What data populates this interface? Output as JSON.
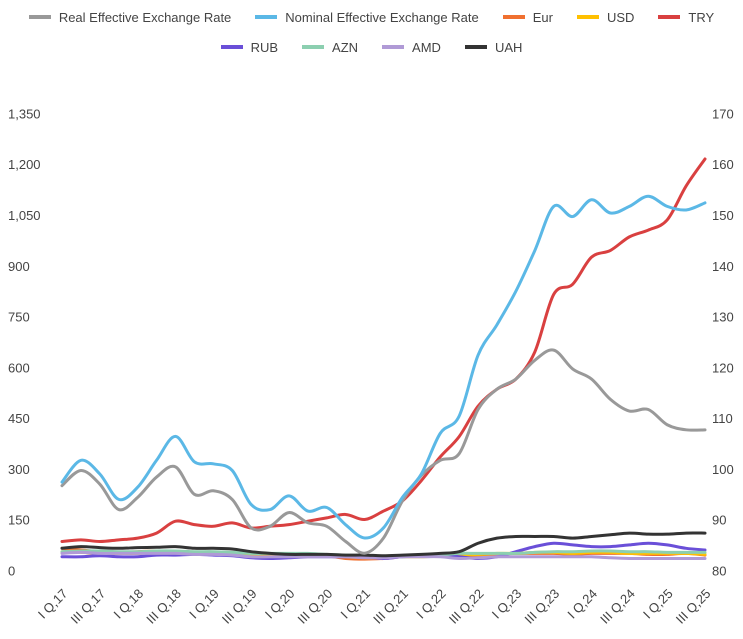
{
  "chart_data": {
    "type": "line",
    "categories": [
      "I Q,17",
      null,
      "III Q,17",
      null,
      "I Q,18",
      null,
      "III Q,18",
      null,
      "I Q,19",
      null,
      "III Q,19",
      null,
      "I Q,20",
      null,
      "III Q,20",
      null,
      "I Q,21",
      null,
      "III Q,21",
      null,
      "I Q,22",
      null,
      "III Q,22",
      null,
      "I Q,23",
      null,
      "III Q,23",
      null,
      "I Q,24",
      null,
      "III Q,24",
      null,
      "I Q,25",
      null,
      "III Q,25"
    ],
    "ylim": [
      0,
      1350
    ],
    "yticks": [
      0,
      150,
      300,
      450,
      600,
      750,
      900,
      {
        "value": 1050,
        "label": "1,050"
      },
      {
        "value": 1200,
        "label": "1,200"
      },
      {
        "value": 1350,
        "label": "1,350"
      }
    ],
    "y2lim": [
      80,
      170
    ],
    "y2ticks": [
      80,
      90,
      100,
      110,
      120,
      130,
      140,
      150,
      160,
      170
    ],
    "series": [
      {
        "name": "Real Effective Exchange Rate",
        "color": "#999999",
        "axis": "y2",
        "values": [
          97,
          100,
          97.3,
          92.3,
          94.7,
          98.7,
          100.7,
          95.3,
          96,
          94.3,
          88.7,
          89,
          91.7,
          89.7,
          89,
          86,
          83.7,
          86.7,
          94,
          99,
          102,
          103.3,
          112,
          116,
          118,
          121.7,
          123.7,
          120,
          118,
          114,
          111.7,
          112,
          109,
          108,
          108
        ]
      },
      {
        "name": "Nominal Effective Exchange Rate",
        "color": "#5bb8e6",
        "axis": "y2",
        "values": [
          97.7,
          102,
          99.3,
          94.3,
          96.7,
          102,
          106.7,
          101.7,
          101.3,
          100,
          93.3,
          92.3,
          95,
          92,
          92.7,
          89.3,
          86.7,
          88.7,
          94.7,
          99.3,
          107.3,
          110.7,
          122.7,
          128.7,
          135.3,
          143.3,
          152,
          150,
          153.3,
          150.7,
          152,
          154,
          152,
          151.3,
          152.7
        ]
      },
      {
        "name": "Eur",
        "color": "#f07030",
        "values": [
          70,
          65,
          60,
          58,
          60,
          62,
          60,
          58,
          58,
          55,
          50,
          50,
          52,
          52,
          48,
          40,
          38,
          40,
          45,
          48,
          50,
          48,
          50,
          52,
          55,
          55,
          55,
          52,
          55,
          55,
          55,
          52,
          52,
          55,
          50
        ]
      },
      {
        "name": "USD",
        "color": "#ffc000",
        "values": [
          60,
          58,
          55,
          55,
          55,
          58,
          58,
          55,
          55,
          52,
          48,
          48,
          50,
          50,
          48,
          45,
          42,
          42,
          45,
          45,
          48,
          50,
          52,
          55,
          55,
          58,
          58,
          55,
          58,
          58,
          55,
          55,
          55,
          55,
          52
        ]
      },
      {
        "name": "TRY",
        "color": "#d94040",
        "values": [
          90,
          95,
          90,
          95,
          100,
          115,
          150,
          140,
          135,
          145,
          130,
          135,
          140,
          150,
          160,
          170,
          155,
          180,
          210,
          270,
          340,
          400,
          490,
          540,
          570,
          650,
          820,
          850,
          930,
          950,
          990,
          1010,
          1040,
          1140,
          1220
        ]
      },
      {
        "name": "RUB",
        "color": "#6a4fd8",
        "values": [
          45,
          45,
          48,
          45,
          45,
          50,
          50,
          52,
          50,
          48,
          42,
          40,
          42,
          45,
          45,
          45,
          45,
          40,
          45,
          48,
          50,
          45,
          40,
          45,
          60,
          75,
          85,
          80,
          75,
          75,
          80,
          85,
          80,
          70,
          65
        ]
      },
      {
        "name": "AZN",
        "color": "#8ccfb0",
        "values": [
          60,
          62,
          62,
          60,
          60,
          62,
          62,
          60,
          60,
          58,
          55,
          55,
          55,
          55,
          52,
          50,
          48,
          45,
          45,
          48,
          50,
          55,
          55,
          55,
          55,
          58,
          60,
          60,
          62,
          62,
          60,
          60,
          58,
          58,
          58
        ]
      },
      {
        "name": "AMD",
        "color": "#b09ad6",
        "values": [
          55,
          58,
          55,
          55,
          55,
          55,
          55,
          52,
          52,
          50,
          45,
          45,
          45,
          45,
          45,
          45,
          42,
          42,
          45,
          45,
          45,
          40,
          42,
          45,
          45,
          45,
          45,
          45,
          45,
          42,
          40,
          40,
          40,
          40,
          40
        ]
      },
      {
        "name": "UAH",
        "color": "#333333",
        "values": [
          70,
          75,
          72,
          70,
          72,
          73,
          75,
          70,
          70,
          68,
          60,
          55,
          52,
          52,
          52,
          50,
          50,
          48,
          50,
          52,
          55,
          60,
          85,
          100,
          105,
          105,
          105,
          100,
          105,
          110,
          115,
          112,
          112,
          115,
          115
        ]
      }
    ]
  }
}
